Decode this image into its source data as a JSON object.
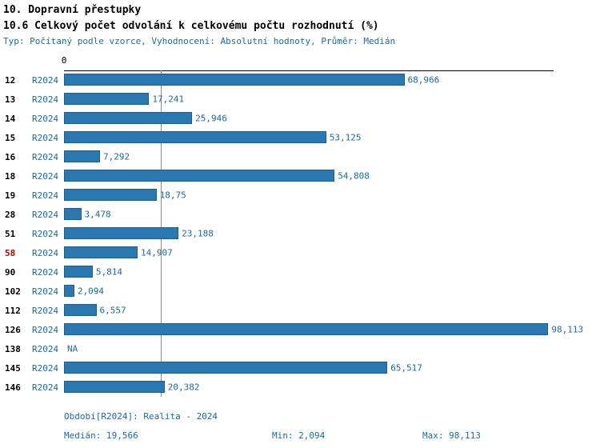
{
  "title": "10. Dopravní přestupky",
  "subtitle": "10.6 Celkový počet odvolání k celkovému počtu rozhodnutí (%)",
  "meta": "Typ: Počítaný podle vzorce, Vyhodnocení: Absolutní hodnoty, Průměr: Medián",
  "axis": {
    "zero_label": "0"
  },
  "chart_data": {
    "type": "bar",
    "orientation": "horizontal",
    "series_label": "R2024",
    "categories": [
      "12",
      "13",
      "14",
      "15",
      "16",
      "18",
      "19",
      "28",
      "51",
      "58",
      "90",
      "102",
      "112",
      "126",
      "138",
      "145",
      "146"
    ],
    "values": [
      68.966,
      17.241,
      25.946,
      53.125,
      7.292,
      54.808,
      18.75,
      3.478,
      23.188,
      14.907,
      5.814,
      2.094,
      6.557,
      98.113,
      null,
      65.517,
      20.382
    ],
    "value_labels": [
      "68,966",
      "17,241",
      "25,946",
      "53,125",
      "7,292",
      "54,808",
      "18,75",
      "3,478",
      "23,188",
      "14,907",
      "5,814",
      "2,094",
      "6,557",
      "98,113",
      "NA",
      "65,517",
      "20,382"
    ],
    "highlighted_category": "58",
    "xlim": [
      0,
      100
    ],
    "median": 19.566,
    "bar_color": "#2a78b0",
    "median_line_color": "#8a8a8a",
    "grid": false,
    "legend": "none"
  },
  "footer": {
    "period": "Období[R2024]: Realita - 2024",
    "median": "Medián: 19,566",
    "min": "Min: 2,094",
    "max": "Max: 98,113"
  }
}
